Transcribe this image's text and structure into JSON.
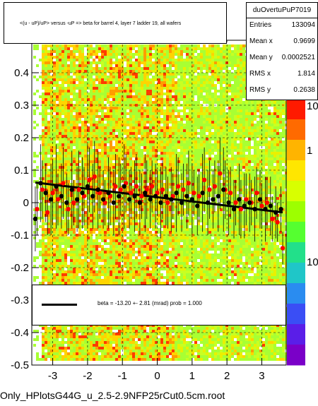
{
  "chart_data": {
    "type": "scatter",
    "title": "<(u - uP)/uP> versus -uP => beta for barrel 4, layer 7 ladder 19, all wafers",
    "xlim": [
      -3.6,
      3.7
    ],
    "ylim": [
      -0.5,
      0.5
    ],
    "x_ticks": [
      "-3",
      "-2",
      "-1",
      "0",
      "1",
      "2",
      "3"
    ],
    "y_ticks": [
      "-0.5",
      "-0.4",
      "-0.3",
      "-0.2",
      "-0.1",
      "0",
      "0.1",
      "0.2",
      "0.3",
      "0.4"
    ],
    "z_ticks": [
      "10",
      "1",
      "10"
    ],
    "grid": true,
    "colors": {
      "background": "#ffffff",
      "heat_low": "#a8ff33",
      "heat_mid": "#ffd400",
      "heat_high": "#ff3b00",
      "red_points": "#ff0000",
      "black_points": "#000000",
      "fit_line": "#000000"
    },
    "fit_line": {
      "x": [
        -3.5,
        3.6
      ],
      "y": [
        0.062,
        -0.03
      ]
    },
    "series": [
      {
        "color": "#ff0000",
        "x": [
          -3.45,
          -3.3,
          -3.15,
          -3.0,
          -2.85,
          -2.7,
          -2.55,
          -2.4,
          -2.25,
          -2.1,
          -1.95,
          -1.8,
          -1.65,
          -1.5,
          -1.35,
          -1.2,
          -1.05,
          -0.9,
          -0.75,
          -0.6,
          -0.45,
          -0.3,
          -0.15,
          0.0,
          0.15,
          0.3,
          0.45,
          0.6,
          0.75,
          0.9,
          1.05,
          1.2,
          1.35,
          1.5,
          1.65,
          1.8,
          1.95,
          2.1,
          2.25,
          2.4,
          2.55,
          2.7,
          2.85,
          3.0,
          3.15,
          3.3,
          3.45,
          3.6
        ],
        "y": [
          -0.02,
          0.04,
          -0.03,
          0.03,
          0.01,
          0.06,
          -0.02,
          0.0,
          0.04,
          0.02,
          0.07,
          0.08,
          0.03,
          0.0,
          0.02,
          0.05,
          0.04,
          0.06,
          0.03,
          0.05,
          0.02,
          0.04,
          0.05,
          0.03,
          0.04,
          0.0,
          0.02,
          0.05,
          0.04,
          0.06,
          0.03,
          0.02,
          0.07,
          0.04,
          0.05,
          0.09,
          0.04,
          0.03,
          0.0,
          -0.02,
          0.01,
          0.0,
          0.03,
          -0.01,
          0.0,
          -0.05,
          -0.06,
          -0.14
        ],
        "y_err": [
          0.08,
          0.09,
          0.07,
          0.1,
          0.08,
          0.11,
          0.08,
          0.07,
          0.12,
          0.09,
          0.1,
          0.11,
          0.08,
          0.07,
          0.09,
          0.1,
          0.08,
          0.09,
          0.08,
          0.1,
          0.07,
          0.09,
          0.08,
          0.07,
          0.09,
          0.08,
          0.07,
          0.09,
          0.08,
          0.1,
          0.07,
          0.08,
          0.1,
          0.09,
          0.08,
          0.11,
          0.09,
          0.08,
          0.07,
          0.09,
          0.08,
          0.07,
          0.08,
          0.07,
          0.08,
          0.07,
          0.06,
          0.05
        ]
      },
      {
        "color": "#000000",
        "x": [
          -3.5,
          -3.35,
          -3.2,
          -3.05,
          -2.9,
          -2.75,
          -2.6,
          -2.45,
          -2.3,
          -2.15,
          -2.0,
          -1.85,
          -1.7,
          -1.55,
          -1.4,
          -1.25,
          -1.1,
          -0.95,
          -0.8,
          -0.65,
          -0.5,
          -0.35,
          -0.2,
          -0.05,
          0.1,
          0.25,
          0.4,
          0.55,
          0.7,
          0.85,
          1.0,
          1.15,
          1.3,
          1.45,
          1.6,
          1.75,
          1.9,
          2.05,
          2.2,
          2.35,
          2.5,
          2.65,
          2.8,
          2.95,
          3.1,
          3.25,
          3.4,
          3.55
        ],
        "y": [
          -0.05,
          0.06,
          0.03,
          0.01,
          0.05,
          0.02,
          0.0,
          0.04,
          0.01,
          0.03,
          0.05,
          0.02,
          0.04,
          0.01,
          0.03,
          0.0,
          0.02,
          0.05,
          0.01,
          0.02,
          0.0,
          0.03,
          0.01,
          0.02,
          0.0,
          0.02,
          0.01,
          0.03,
          0.0,
          0.02,
          0.01,
          -0.01,
          0.03,
          0.0,
          0.01,
          0.02,
          0.04,
          0.0,
          -0.02,
          0.01,
          -0.01,
          0.0,
          -0.02,
          0.01,
          -0.02,
          -0.01,
          -0.03,
          -0.02
        ],
        "y_err": [
          0.1,
          0.12,
          0.09,
          0.11,
          0.13,
          0.1,
          0.09,
          0.12,
          0.1,
          0.11,
          0.13,
          0.1,
          0.12,
          0.09,
          0.11,
          0.1,
          0.12,
          0.13,
          0.09,
          0.11,
          0.1,
          0.12,
          0.09,
          0.1,
          0.11,
          0.09,
          0.1,
          0.12,
          0.09,
          0.1,
          0.11,
          0.09,
          0.12,
          0.1,
          0.09,
          0.11,
          0.13,
          0.1,
          0.09,
          0.11,
          0.1,
          0.09,
          0.1,
          0.09,
          0.1,
          0.09,
          0.08,
          0.07
        ]
      }
    ]
  },
  "title_text": "<(u - uP)/uP> versus -uP => beta for barrel 4, layer 7 ladder 19, all wafers",
  "stats": {
    "name": "duOvertuPuP7019",
    "rows": [
      {
        "key": "Entries",
        "value": "133094"
      },
      {
        "key": "Mean x",
        "value": "0.9699"
      },
      {
        "key": "Mean y",
        "value": "0.0002521"
      },
      {
        "key": "RMS x",
        "value": "1.814"
      },
      {
        "key": "RMS y",
        "value": "0.2638"
      }
    ]
  },
  "legend_text": "beta =  -13.20 +-  2.81 (mrad) prob = 1.000",
  "bottom_label": "Only_HPlotsG44G_u_2.5-2.9NFP25rCut0.5cm.root"
}
